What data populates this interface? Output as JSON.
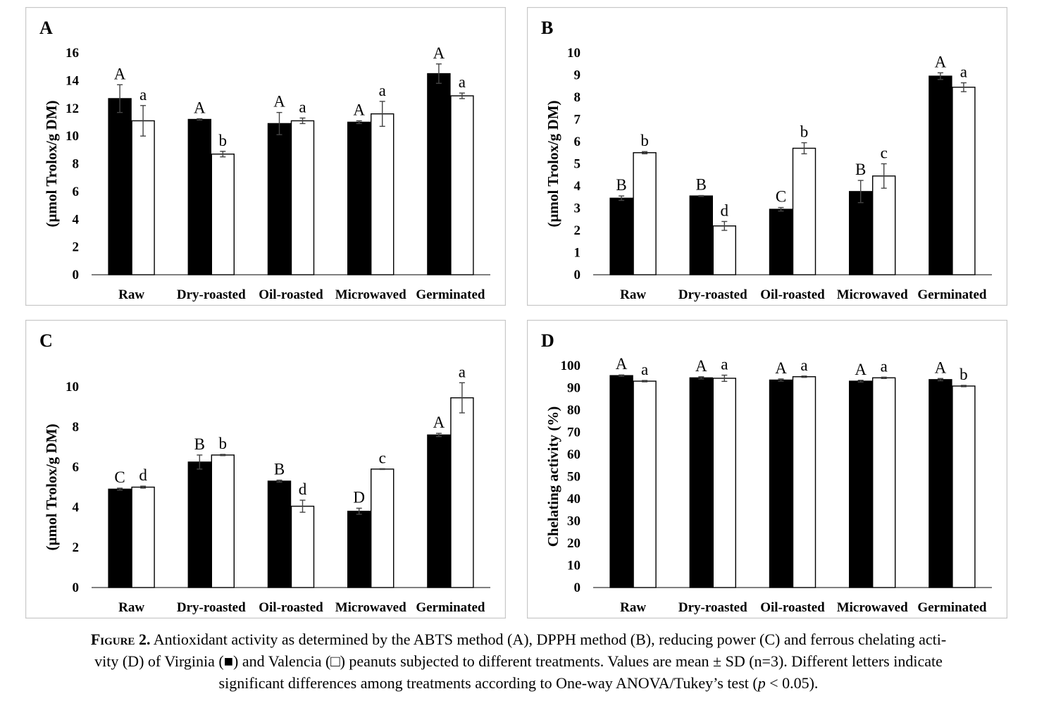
{
  "figure": {
    "caption_label": "Figure 2.",
    "caption_text": "Antioxidant activity as determined by the ABTS method (A), DPPH method (B), reducing power (C) and ferrous chelating acti-",
    "caption_text_2": "vity (D) of Virginia (■) and Valencia (□) peanuts subjected to different treatments. Values are mean ± SD (n=3). Different letters indicate",
    "caption_text_3a": "significant differences among treatments according to One-way ANOVA/Tukey’s test (",
    "caption_p": "p",
    "caption_text_3b": " < 0.05)."
  },
  "colors": {
    "virginia": "#000000",
    "valencia": "#ffffff",
    "axis": "#000000"
  },
  "chart_data": [
    {
      "type": "bar",
      "panel": "A",
      "ylabel": "(µmol Trolox/g DM)",
      "ylim": [
        0,
        16
      ],
      "yticks": [
        0,
        2,
        4,
        6,
        8,
        10,
        12,
        14,
        16
      ],
      "categories": [
        "Raw",
        "Dry-roasted",
        "Oil-roasted",
        "Microwaved",
        "Germinated"
      ],
      "series": [
        {
          "values": [
            12.7,
            11.2,
            10.9,
            11.0,
            14.5
          ],
          "errors": [
            1.0,
            0.05,
            0.8,
            0.1,
            0.7
          ],
          "letters": [
            "A",
            "A",
            "A",
            "A",
            "A"
          ]
        },
        {
          "values": [
            11.1,
            8.7,
            11.1,
            11.6,
            12.9
          ],
          "errors": [
            1.1,
            0.2,
            0.2,
            0.9,
            0.2
          ],
          "letters": [
            "a",
            "b",
            "a",
            "a",
            "a"
          ]
        }
      ]
    },
    {
      "type": "bar",
      "panel": "B",
      "ylabel": "(µmol Trolox/g DM)",
      "ylim": [
        0,
        10
      ],
      "yticks": [
        0,
        1,
        2,
        3,
        4,
        5,
        6,
        7,
        8,
        9,
        10
      ],
      "categories": [
        "Raw",
        "Dry-roasted",
        "Oil-roasted",
        "Microwaved",
        "Germinated"
      ],
      "series": [
        {
          "values": [
            3.45,
            3.55,
            2.95,
            3.75,
            8.95
          ],
          "errors": [
            0.1,
            0.02,
            0.08,
            0.5,
            0.15
          ],
          "letters": [
            "B",
            "B",
            "C",
            "B",
            "A"
          ]
        },
        {
          "values": [
            5.5,
            2.2,
            5.7,
            4.45,
            8.45
          ],
          "errors": [
            0.05,
            0.2,
            0.25,
            0.55,
            0.2
          ],
          "letters": [
            "b",
            "d",
            "b",
            "c",
            "a"
          ]
        }
      ]
    },
    {
      "type": "bar",
      "panel": "C",
      "ylabel": "(µmol Trolox/g DM)",
      "ylim": [
        0,
        10
      ],
      "yticks": [
        0,
        2,
        4,
        6,
        8,
        10
      ],
      "categories": [
        "Raw",
        "Dry-roasted",
        "Oil-roasted",
        "Microwaved",
        "Germinated"
      ],
      "series": [
        {
          "values": [
            4.9,
            6.25,
            5.3,
            3.8,
            7.6
          ],
          "errors": [
            0.05,
            0.35,
            0.05,
            0.15,
            0.08
          ],
          "letters": [
            "C",
            "B",
            "B",
            "D",
            "A"
          ]
        },
        {
          "values": [
            5.0,
            6.6,
            4.05,
            5.9,
            9.45
          ],
          "errors": [
            0.05,
            0.03,
            0.3,
            0.02,
            0.75
          ],
          "letters": [
            "d",
            "b",
            "d",
            "c",
            "a"
          ]
        }
      ]
    },
    {
      "type": "bar",
      "panel": "D",
      "ylabel": "Chelating activity (%)",
      "ylim": [
        0,
        100
      ],
      "yticks": [
        0,
        10,
        20,
        30,
        40,
        50,
        60,
        70,
        80,
        90,
        100
      ],
      "categories": [
        "Raw",
        "Dry-roasted",
        "Oil-roasted",
        "Microwaved",
        "Germinated"
      ],
      "series": [
        {
          "values": [
            95.5,
            94.5,
            93.5,
            93.0,
            93.7
          ],
          "errors": [
            0.3,
            0.5,
            0.5,
            0.4,
            0.5
          ],
          "letters": [
            "A",
            "A",
            "A",
            "A",
            "A"
          ]
        },
        {
          "values": [
            93.0,
            94.3,
            95.0,
            94.5,
            90.8
          ],
          "errors": [
            0.3,
            1.4,
            0.3,
            0.3,
            0.3
          ],
          "letters": [
            "a",
            "a",
            "a",
            "a",
            "b"
          ]
        }
      ]
    }
  ]
}
